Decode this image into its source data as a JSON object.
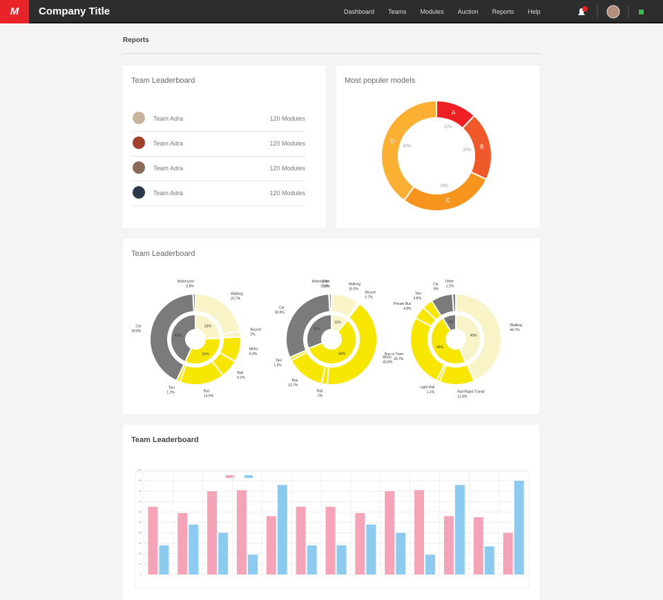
{
  "header": {
    "title": "Company Title",
    "nav": [
      "Dashboard",
      "Teams",
      "Modules",
      "Auction",
      "Reports",
      "Help"
    ]
  },
  "page_title": "Reports",
  "leaderboard": {
    "title": "Team Leaderboard",
    "rows": [
      {
        "team": "Team Adra",
        "modules": "120 Modules"
      },
      {
        "team": "Team Adra",
        "modules": "120 Modules"
      },
      {
        "team": "Team Adra",
        "modules": "120 Modules"
      },
      {
        "team": "Team Adra",
        "modules": "120 Modules"
      }
    ]
  },
  "models": {
    "type": "pie",
    "title": "Most populer models",
    "categories": [
      "A",
      "B",
      "C",
      "D"
    ],
    "values": [
      12,
      20,
      28,
      40
    ],
    "value_labels": [
      "12%",
      "20%",
      "28%",
      "40%"
    ],
    "colors": [
      "#ee2024",
      "#f0592a",
      "#f7941d",
      "#fbb034"
    ]
  },
  "modes": {
    "type": "sunburst",
    "title": "Team Leaderboard",
    "charts": [
      {
        "outer": {
          "categories": [
            "Walking",
            "Bicycle",
            "Metro",
            "Rail",
            "Bus",
            "Taxi",
            "Car",
            "Motorcycle"
          ],
          "values": [
            20.7,
            2,
            8.4,
            6.2,
            14.9,
            1.2,
            39.8,
            0.8
          ],
          "value_labels": [
            "20.7%",
            "2%",
            "8.4%",
            "6.2%",
            "14.9%",
            "1.2%",
            "39.8%",
            "0.8%"
          ],
          "colors": [
            "#f8f4c8",
            "#f8f4c8",
            "#f7e600",
            "#f7e600",
            "#f7e600",
            "#f7e600",
            "#7b7b7b",
            "#7b7b7b"
          ]
        },
        "inner": {
          "values": [
            23,
            31,
            41
          ],
          "value_labels": [
            "23%",
            "31%",
            "41%"
          ],
          "colors": [
            "#f8f4c8",
            "#f7e600",
            "#7b7b7b"
          ]
        }
      },
      {
        "outer": {
          "categories": [
            "Walking",
            "Bicycle",
            "Metro",
            "Rail",
            "Bus",
            "Taxi",
            "Car",
            "Motorcycle",
            "Other"
          ],
          "values": [
            10.0,
            0.7,
            40.8,
            2,
            13.7,
            1.2,
            30.6,
            0.1,
            0.8
          ],
          "value_labels": [
            "10.0%",
            "0.7%",
            "40.8%",
            "2%",
            "13.7%",
            "1.2%",
            "30.6%",
            "0.1%",
            "0.8%"
          ],
          "colors": [
            "#f8f4c8",
            "#f8f4c8",
            "#f7e600",
            "#f7e600",
            "#f7e600",
            "#f7e600",
            "#7b7b7b",
            "#7b7b7b",
            "#7b7b7b"
          ]
        },
        "inner": {
          "values": [
            11,
            58,
            31
          ],
          "value_labels": [
            "11%",
            "58%",
            "31%"
          ],
          "colors": [
            "#f8f4c8",
            "#f7e600",
            "#7b7b7b"
          ]
        }
      },
      {
        "outer": {
          "categories": [
            "Walking",
            "Rail Rapid Transit",
            "Light Rail",
            "Bus or Tram",
            "Private Bus",
            "Taxi",
            "Car",
            "Other"
          ],
          "values": [
            44.7,
            12.8,
            1.1,
            26.7,
            4.8,
            3.8,
            8,
            1.2
          ],
          "value_labels": [
            "44.7%",
            "12.8%",
            "1.1%",
            "26.7%",
            "4.8%",
            "3.8%",
            "8%",
            "1.2%"
          ],
          "colors": [
            "#f8f4c8",
            "#f7e600",
            "#f7e600",
            "#f7e600",
            "#f7e600",
            "#f7e600",
            "#7b7b7b",
            "#7b7b7b"
          ]
        },
        "inner": {
          "values": [
            45,
            49,
            9
          ],
          "value_labels": [
            "45%",
            "49%",
            "9%"
          ],
          "colors": [
            "#f8f4c8",
            "#f7e600",
            "#7b7b7b"
          ]
        }
      }
    ]
  },
  "bars": {
    "type": "bar",
    "title": "Team Leaderboard",
    "ylim": [
      0,
      100
    ],
    "yticks": [
      0,
      10,
      20,
      30,
      40,
      50,
      60,
      70,
      80,
      90,
      100
    ],
    "grid": true,
    "series": [
      {
        "color": "#f5a3b6",
        "values": [
          65,
          59,
          80,
          81,
          56,
          65,
          65,
          59,
          80,
          81,
          56,
          55,
          40
        ]
      },
      {
        "color": "#8ccaf0",
        "values": [
          28,
          48,
          40,
          19,
          86,
          28,
          28,
          48,
          40,
          19,
          86,
          27,
          90
        ]
      }
    ]
  }
}
